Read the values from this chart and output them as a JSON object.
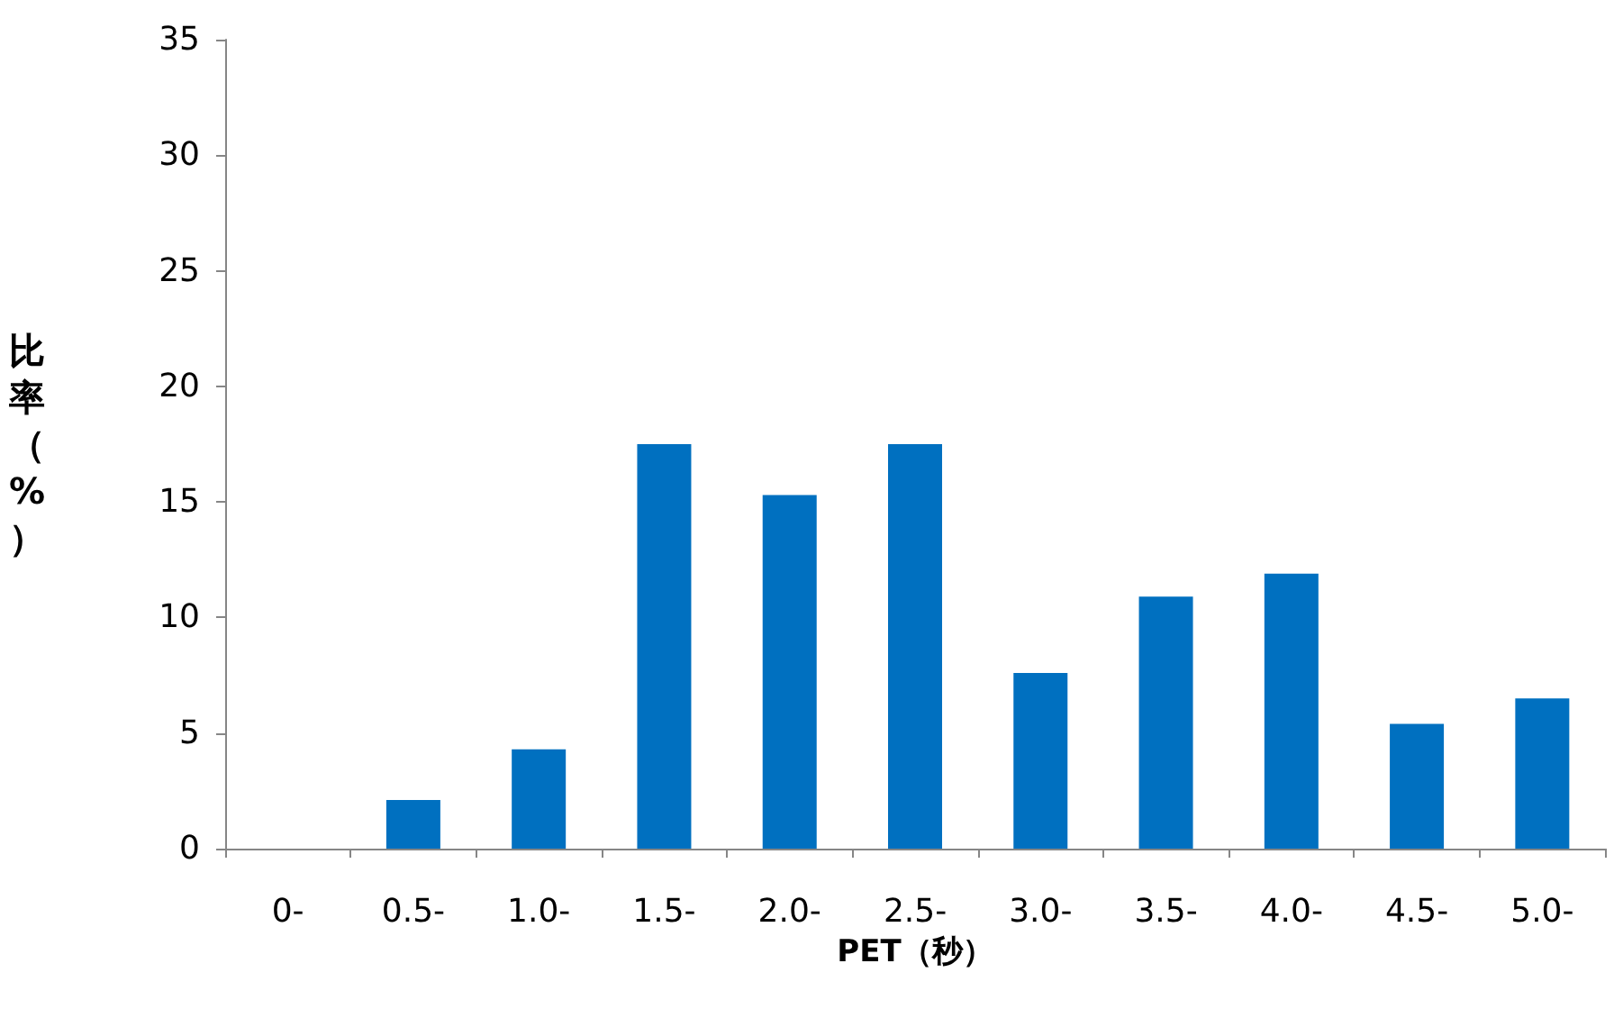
{
  "chart_data": {
    "type": "bar",
    "xlabel": "PET（秒）",
    "ylabel": "比率（%）",
    "categories": [
      "0-",
      "0.5-",
      "1.0-",
      "1.5-",
      "2.0-",
      "2.5-",
      "3.0-",
      "3.5-",
      "4.0-",
      "4.5-",
      "5.0-"
    ],
    "values": [
      0,
      2.1,
      4.3,
      17.5,
      15.3,
      17.5,
      7.6,
      10.9,
      11.9,
      5.4,
      6.5
    ],
    "color": "#0070c0",
    "ylim": [
      0,
      35
    ],
    "yticks": [
      0,
      5,
      10,
      15,
      20,
      25,
      30,
      35
    ],
    "grid": false
  }
}
